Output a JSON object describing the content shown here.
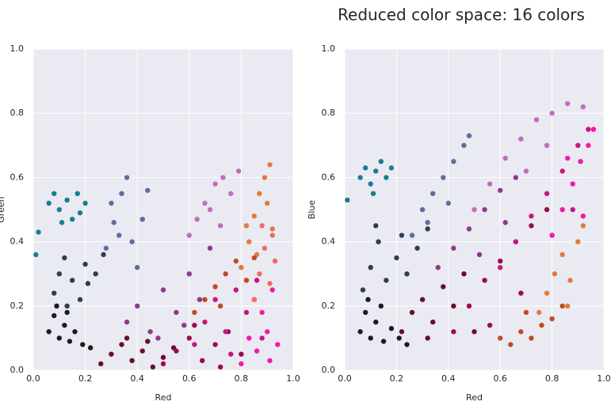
{
  "title": "Reduced color space: 16 colors",
  "chart_data": [
    {
      "type": "scatter",
      "xlabel": "Red",
      "ylabel": "Green",
      "xlim": [
        0,
        1
      ],
      "ylim": [
        0,
        1
      ],
      "xticks": [
        {
          "value": 0,
          "label": "0.0"
        },
        0.2,
        0.4,
        0.6,
        0.8,
        {
          "value": 1,
          "label": "1.0"
        }
      ],
      "yticks": [
        {
          "value": 0,
          "label": "0.0"
        },
        0.2,
        0.4,
        0.6,
        0.8,
        {
          "value": 1,
          "label": "1.0"
        }
      ],
      "grid": true,
      "series": [
        {
          "color": "#1b1c20",
          "x": [
            0.06,
            0.08,
            0.1,
            0.12,
            0.14,
            0.16,
            0.19,
            0.22,
            0.09,
            0.13
          ],
          "values": [
            0.12,
            0.17,
            0.1,
            0.14,
            0.09,
            0.12,
            0.08,
            0.07,
            0.2,
            0.18
          ]
        },
        {
          "color": "#2c3e50",
          "x": [
            0.08,
            0.1,
            0.12,
            0.15,
            0.18,
            0.21,
            0.24,
            0.27,
            0.13,
            0.2
          ],
          "values": [
            0.24,
            0.3,
            0.35,
            0.28,
            0.22,
            0.27,
            0.3,
            0.36,
            0.2,
            0.33
          ]
        },
        {
          "color": "#1a7d92",
          "x": [
            0.06,
            0.08,
            0.1,
            0.13,
            0.15,
            0.17,
            0.2,
            0.18,
            0.11,
            0.01,
            0.02
          ],
          "values": [
            0.52,
            0.55,
            0.5,
            0.53,
            0.47,
            0.55,
            0.52,
            0.49,
            0.46,
            0.36,
            0.43
          ]
        },
        {
          "color": "#5b6f9c",
          "x": [
            0.28,
            0.31,
            0.34,
            0.36,
            0.38,
            0.4,
            0.42,
            0.44,
            0.33,
            0.3
          ],
          "values": [
            0.38,
            0.46,
            0.55,
            0.6,
            0.4,
            0.32,
            0.47,
            0.56,
            0.42,
            0.52
          ]
        },
        {
          "color": "#6a0d2c",
          "x": [
            0.26,
            0.3,
            0.34,
            0.38,
            0.42,
            0.46,
            0.5,
            0.54,
            0.36,
            0.44
          ],
          "values": [
            0.02,
            0.05,
            0.08,
            0.03,
            0.06,
            0.01,
            0.04,
            0.07,
            0.1,
            0.09
          ]
        },
        {
          "color": "#8e3a8e",
          "x": [
            0.36,
            0.4,
            0.45,
            0.5,
            0.55,
            0.6,
            0.64,
            0.68,
            0.48,
            0.58
          ],
          "values": [
            0.15,
            0.2,
            0.12,
            0.25,
            0.18,
            0.3,
            0.22,
            0.38,
            0.1,
            0.14
          ]
        },
        {
          "color": "#c26cc0",
          "x": [
            0.6,
            0.63,
            0.66,
            0.7,
            0.73,
            0.76,
            0.79,
            0.72,
            0.68
          ],
          "values": [
            0.42,
            0.47,
            0.52,
            0.58,
            0.6,
            0.55,
            0.62,
            0.45,
            0.5
          ]
        },
        {
          "color": "#9c0b4e",
          "x": [
            0.5,
            0.55,
            0.6,
            0.65,
            0.7,
            0.75,
            0.8,
            0.62,
            0.72
          ],
          "values": [
            0.02,
            0.06,
            0.1,
            0.03,
            0.08,
            0.12,
            0.05,
            0.14,
            0.01
          ]
        },
        {
          "color": "#c9167d",
          "x": [
            0.62,
            0.66,
            0.7,
            0.74,
            0.78,
            0.82,
            0.86,
            0.76,
            0.88
          ],
          "values": [
            0.08,
            0.15,
            0.22,
            0.12,
            0.25,
            0.18,
            0.28,
            0.05,
            0.1
          ]
        },
        {
          "color": "#f21ba2",
          "x": [
            0.8,
            0.83,
            0.86,
            0.88,
            0.9,
            0.92,
            0.94,
            0.85,
            0.91
          ],
          "values": [
            0.02,
            0.1,
            0.06,
            0.18,
            0.12,
            0.25,
            0.08,
            0.22,
            0.03
          ]
        },
        {
          "color": "#e07b3d",
          "x": [
            0.8,
            0.83,
            0.85,
            0.87,
            0.89,
            0.9,
            0.91,
            0.92,
            0.86,
            0.82
          ],
          "values": [
            0.32,
            0.4,
            0.48,
            0.55,
            0.6,
            0.52,
            0.64,
            0.44,
            0.36,
            0.45
          ]
        },
        {
          "color": "#ee6a6a",
          "x": [
            0.85,
            0.87,
            0.89,
            0.91,
            0.92,
            0.93,
            0.88
          ],
          "values": [
            0.22,
            0.3,
            0.38,
            0.27,
            0.42,
            0.34,
            0.45
          ]
        },
        {
          "color": "#c24923",
          "x": [
            0.62,
            0.66,
            0.7,
            0.74,
            0.78,
            0.82,
            0.85,
            0.72
          ],
          "values": [
            0.18,
            0.22,
            0.26,
            0.3,
            0.34,
            0.28,
            0.35,
            0.2
          ]
        }
      ]
    },
    {
      "type": "scatter",
      "xlabel": "Red",
      "ylabel": "Blue",
      "xlim": [
        0,
        1
      ],
      "ylim": [
        0,
        1
      ],
      "xticks": [
        {
          "value": 0,
          "label": "0.0"
        },
        0.2,
        0.4,
        0.6,
        0.8,
        {
          "value": 1,
          "label": "1.0"
        }
      ],
      "yticks": [
        {
          "value": 0,
          "label": "0.0"
        },
        0.2,
        0.4,
        0.6,
        0.8,
        {
          "value": 1,
          "label": "1.0"
        }
      ],
      "grid": true,
      "series": [
        {
          "color": "#1b1c20",
          "x": [
            0.06,
            0.08,
            0.1,
            0.12,
            0.15,
            0.18,
            0.21,
            0.24,
            0.09,
            0.14
          ],
          "values": [
            0.12,
            0.18,
            0.1,
            0.15,
            0.09,
            0.13,
            0.1,
            0.08,
            0.22,
            0.2
          ]
        },
        {
          "color": "#2c3e50",
          "x": [
            0.07,
            0.1,
            0.13,
            0.16,
            0.2,
            0.24,
            0.28,
            0.32,
            0.12,
            0.22
          ],
          "values": [
            0.25,
            0.32,
            0.4,
            0.28,
            0.35,
            0.3,
            0.38,
            0.44,
            0.45,
            0.42
          ]
        },
        {
          "color": "#1a7d92",
          "x": [
            0.06,
            0.08,
            0.1,
            0.12,
            0.14,
            0.16,
            0.18,
            0.11,
            0.01
          ],
          "values": [
            0.6,
            0.63,
            0.58,
            0.62,
            0.65,
            0.6,
            0.63,
            0.55,
            0.53
          ]
        },
        {
          "color": "#5b6f9c",
          "x": [
            0.26,
            0.3,
            0.34,
            0.38,
            0.42,
            0.46,
            0.4,
            0.48,
            0.32
          ],
          "values": [
            0.42,
            0.5,
            0.55,
            0.6,
            0.65,
            0.7,
            0.52,
            0.73,
            0.46
          ]
        },
        {
          "color": "#c26cc0",
          "x": [
            0.5,
            0.56,
            0.62,
            0.68,
            0.74,
            0.8,
            0.86,
            0.92,
            0.7,
            0.78
          ],
          "values": [
            0.5,
            0.58,
            0.66,
            0.72,
            0.78,
            0.8,
            0.83,
            0.82,
            0.62,
            0.7
          ]
        },
        {
          "color": "#8e3a8e",
          "x": [
            0.36,
            0.42,
            0.48,
            0.54,
            0.6,
            0.66,
            0.52,
            0.62
          ],
          "values": [
            0.32,
            0.38,
            0.44,
            0.5,
            0.56,
            0.6,
            0.36,
            0.46
          ]
        },
        {
          "color": "#6a0d2c",
          "x": [
            0.22,
            0.26,
            0.3,
            0.34,
            0.38,
            0.42,
            0.46,
            0.5,
            0.32
          ],
          "values": [
            0.12,
            0.18,
            0.22,
            0.15,
            0.26,
            0.2,
            0.3,
            0.12,
            0.1
          ]
        },
        {
          "color": "#9c0b4e",
          "x": [
            0.42,
            0.48,
            0.54,
            0.6,
            0.66,
            0.72,
            0.78,
            0.56,
            0.68
          ],
          "values": [
            0.12,
            0.2,
            0.28,
            0.34,
            0.4,
            0.45,
            0.5,
            0.14,
            0.24
          ]
        },
        {
          "color": "#c9167d",
          "x": [
            0.6,
            0.66,
            0.72,
            0.78,
            0.84,
            0.9,
            0.94,
            0.8,
            0.88
          ],
          "values": [
            0.32,
            0.4,
            0.48,
            0.55,
            0.62,
            0.7,
            0.75,
            0.42,
            0.5
          ]
        },
        {
          "color": "#f21ba2",
          "x": [
            0.8,
            0.84,
            0.88,
            0.91,
            0.94,
            0.96,
            0.92,
            0.86
          ],
          "values": [
            0.42,
            0.5,
            0.58,
            0.65,
            0.7,
            0.75,
            0.48,
            0.66
          ]
        },
        {
          "color": "#e07b3d",
          "x": [
            0.75,
            0.78,
            0.81,
            0.84,
            0.87,
            0.9,
            0.92,
            0.86
          ],
          "values": [
            0.18,
            0.24,
            0.3,
            0.36,
            0.28,
            0.4,
            0.45,
            0.2
          ]
        },
        {
          "color": "#c24923",
          "x": [
            0.6,
            0.64,
            0.68,
            0.72,
            0.76,
            0.8,
            0.84,
            0.7
          ],
          "values": [
            0.1,
            0.08,
            0.12,
            0.1,
            0.14,
            0.16,
            0.2,
            0.18
          ]
        }
      ]
    }
  ]
}
